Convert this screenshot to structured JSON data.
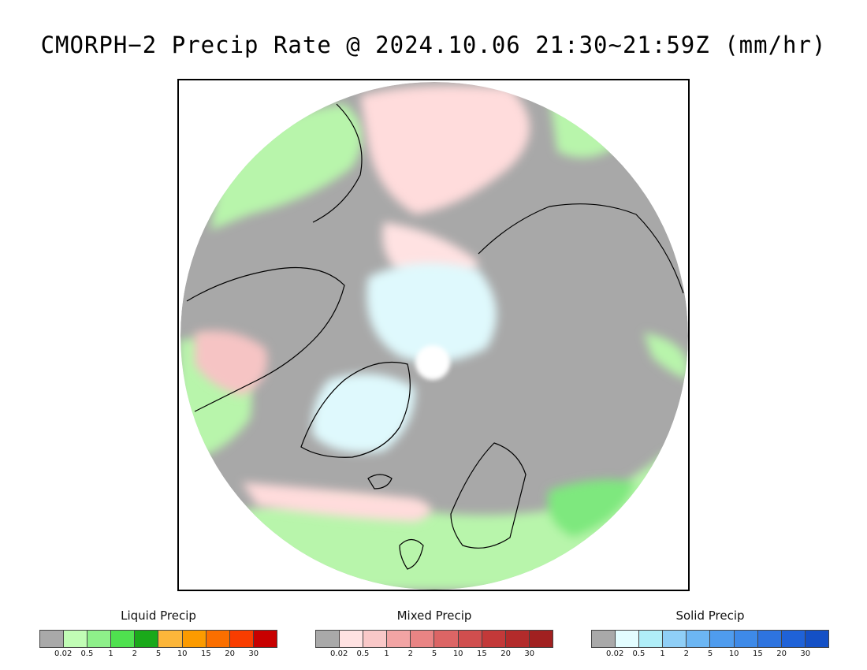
{
  "title": "CMORPH−2 Precip Rate @ 2024.10.06 21:30~21:59Z (mm/hr)",
  "map": {
    "projection": "polar-stereographic-north",
    "colors": {
      "no_precip": "#a8a8a8",
      "ocean_frame": "#ffffff",
      "land_outline": "#000000",
      "liquid_light": "#b8f5ab",
      "liquid_mid": "#7ee87e",
      "liquid_heavy": "#1ea51e",
      "mixed_light": "#ffdcdc",
      "mixed_mid": "#f6a7a7",
      "solid_light": "#dff9fd"
    }
  },
  "legends": [
    {
      "title": "Liquid Precip",
      "colors": [
        "#a9a9a9",
        "#c1fdb5",
        "#8ef08a",
        "#4fe14f",
        "#1aa91a",
        "#fcb63a",
        "#fc9b00",
        "#fb6f00",
        "#f93d00",
        "#c80000"
      ],
      "ticks": [
        "0.02",
        "0.5",
        "1",
        "2",
        "5",
        "10",
        "15",
        "20",
        "30"
      ]
    },
    {
      "title": "Mixed Precip",
      "colors": [
        "#a9a9a9",
        "#ffe2e2",
        "#f9c8c8",
        "#f2a4a4",
        "#e98484",
        "#dc6565",
        "#d04e4e",
        "#c33939",
        "#b32b2b",
        "#a12020"
      ],
      "ticks": [
        "0.02",
        "0.5",
        "1",
        "2",
        "5",
        "10",
        "15",
        "20",
        "30"
      ]
    },
    {
      "title": "Solid Precip",
      "colors": [
        "#a9a9a9",
        "#e3fdff",
        "#b0eef8",
        "#8fcff7",
        "#6cb6f3",
        "#4f9cee",
        "#3e8ae8",
        "#2e74e0",
        "#1f62d8",
        "#1450c6"
      ],
      "ticks": [
        "0.02",
        "0.5",
        "1",
        "2",
        "5",
        "10",
        "15",
        "20",
        "30"
      ]
    }
  ]
}
